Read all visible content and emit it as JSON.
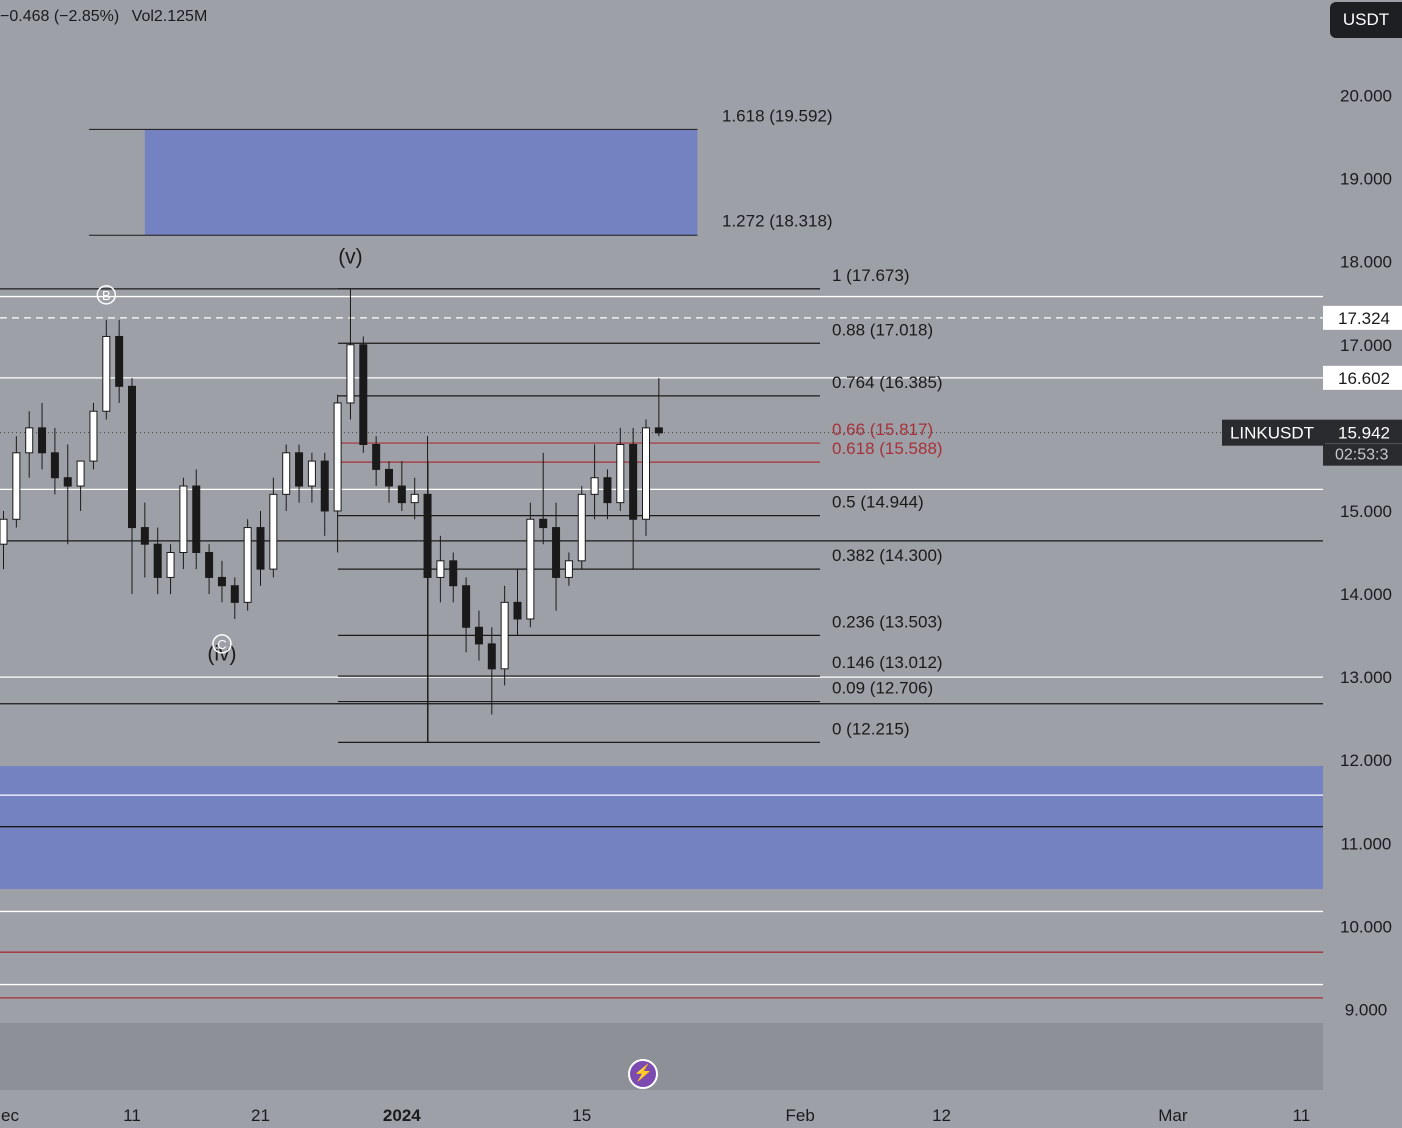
{
  "header": {
    "change_text": "−0.468 (−2.85%)",
    "volume_text": "Vol2.125M",
    "currency_button": "USDT"
  },
  "chart_data": {
    "type": "candlestick",
    "symbol": "LINKUSDT",
    "ylim": [
      8.6,
      20.9
    ],
    "y_ticks": [
      "20.000",
      "19.000",
      "18.000",
      "17.000",
      "15.000",
      "14.000",
      "13.000",
      "12.000",
      "11.000",
      "10.000",
      "9.000"
    ],
    "x_ticks": [
      {
        "label": "ec",
        "date": "2023-12-01"
      },
      {
        "label": "11",
        "date": "2023-12-11"
      },
      {
        "label": "21",
        "date": "2023-12-21"
      },
      {
        "label": "2024",
        "date": "2024-01-01",
        "bold": true
      },
      {
        "label": "15",
        "date": "2024-01-15"
      },
      {
        "label": "Feb",
        "date": "2024-02-01"
      },
      {
        "label": "12",
        "date": "2024-02-12"
      },
      {
        "label": "Mar",
        "date": "2024-03-01"
      },
      {
        "label": "11",
        "date": "2024-03-11"
      }
    ],
    "x_range": [
      "2023-12-01",
      "2024-03-12"
    ],
    "candles": [
      {
        "date": "2023-12-01",
        "open": 14.6,
        "high": 15.0,
        "low": 14.3,
        "close": 14.9
      },
      {
        "date": "2023-12-02",
        "open": 14.9,
        "high": 15.9,
        "low": 14.8,
        "close": 15.7
      },
      {
        "date": "2023-12-03",
        "open": 15.7,
        "high": 16.2,
        "low": 15.4,
        "close": 16.0
      },
      {
        "date": "2023-12-04",
        "open": 16.0,
        "high": 16.3,
        "low": 15.5,
        "close": 15.7
      },
      {
        "date": "2023-12-05",
        "open": 15.7,
        "high": 16.0,
        "low": 15.2,
        "close": 15.4
      },
      {
        "date": "2023-12-06",
        "open": 15.4,
        "high": 15.8,
        "low": 14.6,
        "close": 15.3
      },
      {
        "date": "2023-12-07",
        "open": 15.3,
        "high": 15.6,
        "low": 15.0,
        "close": 15.6
      },
      {
        "date": "2023-12-08",
        "open": 15.6,
        "high": 16.3,
        "low": 15.5,
        "close": 16.2
      },
      {
        "date": "2023-12-09",
        "open": 16.2,
        "high": 17.3,
        "low": 16.1,
        "close": 17.1
      },
      {
        "date": "2023-12-10",
        "open": 17.1,
        "high": 17.3,
        "low": 16.3,
        "close": 16.5
      },
      {
        "date": "2023-12-11",
        "open": 16.5,
        "high": 16.6,
        "low": 14.0,
        "close": 14.8
      },
      {
        "date": "2023-12-12",
        "open": 14.8,
        "high": 15.1,
        "low": 14.2,
        "close": 14.6
      },
      {
        "date": "2023-12-13",
        "open": 14.6,
        "high": 14.8,
        "low": 14.0,
        "close": 14.2
      },
      {
        "date": "2023-12-14",
        "open": 14.2,
        "high": 14.6,
        "low": 14.0,
        "close": 14.5
      },
      {
        "date": "2023-12-15",
        "open": 14.5,
        "high": 15.4,
        "low": 14.3,
        "close": 15.3
      },
      {
        "date": "2023-12-16",
        "open": 15.3,
        "high": 15.5,
        "low": 14.3,
        "close": 14.5
      },
      {
        "date": "2023-12-17",
        "open": 14.5,
        "high": 14.6,
        "low": 14.0,
        "close": 14.2
      },
      {
        "date": "2023-12-18",
        "open": 14.2,
        "high": 14.4,
        "low": 13.9,
        "close": 14.1
      },
      {
        "date": "2023-12-19",
        "open": 14.1,
        "high": 14.2,
        "low": 13.7,
        "close": 13.9
      },
      {
        "date": "2023-12-20",
        "open": 13.9,
        "high": 14.9,
        "low": 13.8,
        "close": 14.8
      },
      {
        "date": "2023-12-21",
        "open": 14.8,
        "high": 15.0,
        "low": 14.1,
        "close": 14.3
      },
      {
        "date": "2023-12-22",
        "open": 14.3,
        "high": 15.4,
        "low": 14.2,
        "close": 15.2
      },
      {
        "date": "2023-12-23",
        "open": 15.2,
        "high": 15.8,
        "low": 15.0,
        "close": 15.7
      },
      {
        "date": "2023-12-24",
        "open": 15.7,
        "high": 15.8,
        "low": 15.1,
        "close": 15.3
      },
      {
        "date": "2023-12-25",
        "open": 15.3,
        "high": 15.7,
        "low": 15.1,
        "close": 15.6
      },
      {
        "date": "2023-12-26",
        "open": 15.6,
        "high": 15.7,
        "low": 14.7,
        "close": 15.0
      },
      {
        "date": "2023-12-27",
        "open": 15.0,
        "high": 16.4,
        "low": 14.5,
        "close": 16.3
      },
      {
        "date": "2023-12-28",
        "open": 16.3,
        "high": 17.67,
        "low": 16.1,
        "close": 17.0
      },
      {
        "date": "2023-12-29",
        "open": 17.0,
        "high": 17.1,
        "low": 15.7,
        "close": 15.8
      },
      {
        "date": "2023-12-30",
        "open": 15.8,
        "high": 15.9,
        "low": 15.3,
        "close": 15.5
      },
      {
        "date": "2023-12-31",
        "open": 15.5,
        "high": 15.6,
        "low": 15.1,
        "close": 15.3
      },
      {
        "date": "2024-01-01",
        "open": 15.3,
        "high": 15.6,
        "low": 15.0,
        "close": 15.1
      },
      {
        "date": "2024-01-02",
        "open": 15.1,
        "high": 15.4,
        "low": 14.9,
        "close": 15.2
      },
      {
        "date": "2024-01-03",
        "open": 15.2,
        "high": 15.9,
        "low": 12.22,
        "close": 14.2
      },
      {
        "date": "2024-01-04",
        "open": 14.2,
        "high": 14.7,
        "low": 13.9,
        "close": 14.4
      },
      {
        "date": "2024-01-05",
        "open": 14.4,
        "high": 14.5,
        "low": 13.9,
        "close": 14.1
      },
      {
        "date": "2024-01-06",
        "open": 14.1,
        "high": 14.2,
        "low": 13.3,
        "close": 13.6
      },
      {
        "date": "2024-01-07",
        "open": 13.6,
        "high": 13.8,
        "low": 13.2,
        "close": 13.4
      },
      {
        "date": "2024-01-08",
        "open": 13.4,
        "high": 13.6,
        "low": 12.55,
        "close": 13.1
      },
      {
        "date": "2024-01-09",
        "open": 13.1,
        "high": 14.1,
        "low": 12.9,
        "close": 13.9
      },
      {
        "date": "2024-01-10",
        "open": 13.9,
        "high": 14.3,
        "low": 13.5,
        "close": 13.7
      },
      {
        "date": "2024-01-11",
        "open": 13.7,
        "high": 15.1,
        "low": 13.6,
        "close": 14.9
      },
      {
        "date": "2024-01-12",
        "open": 14.9,
        "high": 15.7,
        "low": 14.6,
        "close": 14.8
      },
      {
        "date": "2024-01-13",
        "open": 14.8,
        "high": 15.1,
        "low": 13.8,
        "close": 14.2
      },
      {
        "date": "2024-01-14",
        "open": 14.2,
        "high": 14.5,
        "low": 14.1,
        "close": 14.4
      },
      {
        "date": "2024-01-15",
        "open": 14.4,
        "high": 15.3,
        "low": 14.3,
        "close": 15.2
      },
      {
        "date": "2024-01-16",
        "open": 15.2,
        "high": 15.8,
        "low": 14.9,
        "close": 15.4
      },
      {
        "date": "2024-01-17",
        "open": 15.4,
        "high": 15.5,
        "low": 14.9,
        "close": 15.1
      },
      {
        "date": "2024-01-18",
        "open": 15.1,
        "high": 16.0,
        "low": 15.0,
        "close": 15.8
      },
      {
        "date": "2024-01-19",
        "open": 15.8,
        "high": 16.0,
        "low": 14.3,
        "close": 14.9
      },
      {
        "date": "2024-01-20",
        "open": 14.9,
        "high": 16.1,
        "low": 14.7,
        "close": 16.0
      },
      {
        "date": "2024-01-21",
        "open": 16.0,
        "high": 16.6,
        "low": 15.9,
        "close": 15.94
      }
    ],
    "fib_levels": [
      {
        "label": "1 (17.673)",
        "value": 17.673,
        "color": "#1a1a1a"
      },
      {
        "label": "0.88 (17.018)",
        "value": 17.018,
        "color": "#1a1a1a"
      },
      {
        "label": "0.764 (16.385)",
        "value": 16.385,
        "color": "#1a1a1a"
      },
      {
        "label": "0.66 (15.817)",
        "value": 15.817,
        "color": "#a8303a"
      },
      {
        "label": "0.618 (15.588)",
        "value": 15.588,
        "color": "#a8303a"
      },
      {
        "label": "0.5 (14.944)",
        "value": 14.944,
        "color": "#1a1a1a"
      },
      {
        "label": "0.382 (14.300)",
        "value": 14.3,
        "color": "#1a1a1a"
      },
      {
        "label": "0.236 (13.503)",
        "value": 13.503,
        "color": "#1a1a1a"
      },
      {
        "label": "0.146 (13.012)",
        "value": 13.012,
        "color": "#1a1a1a"
      },
      {
        "label": "0.09 (12.706)",
        "value": 12.706,
        "color": "#1a1a1a"
      },
      {
        "label": "0 (12.215)",
        "value": 12.215,
        "color": "#1a1a1a"
      }
    ],
    "extension_zone": {
      "upper_label": "1.618 (19.592)",
      "upper": 19.592,
      "lower_label": "1.272 (18.318)",
      "lower": 18.318,
      "start": "2023-12-12",
      "end": "2024-01-24",
      "color": "#7482c2"
    },
    "support_zone": {
      "upper": 11.93,
      "lower": 10.45,
      "color": "#7482c2"
    },
    "horizontal_lines": [
      {
        "value": 17.58,
        "color": "#ffffff"
      },
      {
        "value": 16.602,
        "color": "#ffffff"
      },
      {
        "value": 15.26,
        "color": "#ffffff"
      },
      {
        "value": 14.64,
        "color": "#1a1a1a"
      },
      {
        "value": 13.0,
        "color": "#ffffff"
      },
      {
        "value": 12.68,
        "color": "#1a1a1a"
      },
      {
        "value": 11.58,
        "color": "#ffffff"
      },
      {
        "value": 11.2,
        "color": "#1a1a1a"
      },
      {
        "value": 10.18,
        "color": "#ffffff"
      },
      {
        "value": 9.69,
        "color": "#a8303a"
      },
      {
        "value": 9.3,
        "color": "#ffffff"
      },
      {
        "value": 9.14,
        "color": "#a8303a"
      }
    ],
    "dashed_line": {
      "value": 17.324,
      "color": "#ffffff"
    },
    "current_price_line": {
      "value": 15.942
    },
    "price_labels": [
      {
        "text": "17.324",
        "value": 17.324,
        "style": "light"
      },
      {
        "text": "16.602",
        "value": 16.602,
        "style": "light"
      }
    ],
    "current_price": {
      "symbol": "LINKUSDT",
      "price": "15.942",
      "countdown": "02:53:3",
      "value": 15.942
    },
    "wave_labels": [
      {
        "text": "(v)",
        "date": "2023-12-28",
        "value": 17.98,
        "style": "plain"
      },
      {
        "text": "(iv)",
        "date": "2023-12-18",
        "value": 13.2,
        "style": "plain"
      },
      {
        "text": "B",
        "date": "2023-12-09",
        "value": 17.6,
        "style": "circled"
      },
      {
        "text": "C",
        "date": "2023-12-18",
        "value": 13.4,
        "style": "circled"
      }
    ],
    "bottom_panel": {
      "color": "#8d9097"
    },
    "colors": {
      "background": "#9da0a6",
      "candle_up": "#ffffff",
      "candle_down": "#1a1a1a",
      "axis_text": "#1a1b1e"
    }
  }
}
